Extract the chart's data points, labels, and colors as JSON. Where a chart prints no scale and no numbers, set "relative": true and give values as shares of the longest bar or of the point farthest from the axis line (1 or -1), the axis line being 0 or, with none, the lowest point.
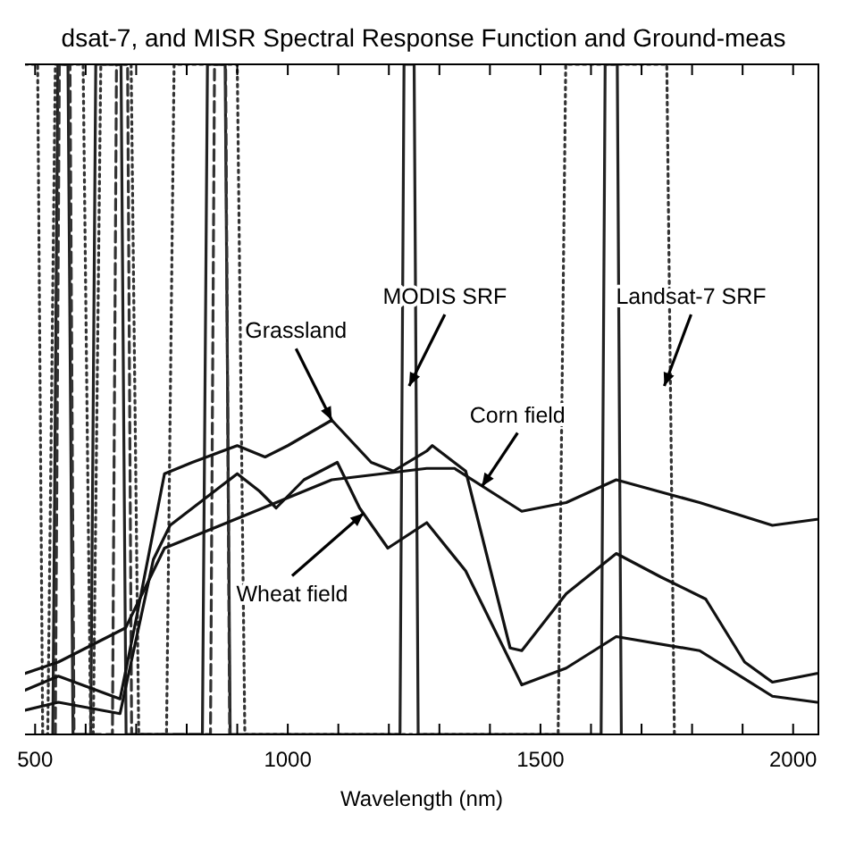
{
  "chart_data": {
    "type": "line",
    "title": "dsat-7, and MISR Spectral Response Function and Ground-meas",
    "xlabel": "Wavelength (nm)",
    "relative": true,
    "xlim": [
      480,
      2050
    ],
    "xticks": [
      {
        "value": 500,
        "label": "500"
      },
      {
        "value": 600,
        "label": null
      },
      {
        "value": 700,
        "label": null
      },
      {
        "value": 800,
        "label": null
      },
      {
        "value": 900,
        "label": null
      },
      1000,
      {
        "value": 1100,
        "label": null
      },
      {
        "value": 1200,
        "label": null
      },
      {
        "value": 1300,
        "label": null
      },
      {
        "value": 1400,
        "label": null
      },
      1500,
      {
        "value": 1600,
        "label": null
      },
      {
        "value": 1700,
        "label": null
      },
      {
        "value": 1800,
        "label": null
      },
      {
        "value": 1900,
        "label": null
      },
      2000
    ],
    "grid": false,
    "series": [
      {
        "color": "#222222",
        "line_style": "solid",
        "x": [
          535,
          545,
          565,
          575,
          610,
          620,
          670,
          680,
          831,
          841,
          876,
          886,
          1222,
          1230,
          1250,
          1258,
          1620,
          1628,
          1652,
          1660
        ],
        "values": [
          0,
          1,
          1,
          0,
          0,
          1,
          1,
          0,
          0,
          1,
          1,
          0,
          0,
          1,
          1,
          0,
          0,
          1,
          1,
          0
        ]
      },
      {
        "color": "#333333",
        "line_style": "dotted",
        "x": [
          480,
          505,
          515,
          525,
          540,
          595,
          610,
          615,
          630,
          690,
          705,
          760,
          775,
          900,
          915,
          1535,
          1550,
          1750,
          1765
        ],
        "values": [
          1,
          1,
          0,
          0,
          1,
          1,
          0,
          0,
          1,
          1,
          0,
          0,
          1,
          1,
          0,
          0,
          1,
          1,
          0
        ]
      },
      {
        "color": "#333333",
        "line_style": "dashed",
        "x": [
          540,
          548,
          569,
          577,
          653,
          661,
          683,
          691,
          847,
          855,
          877,
          885
        ],
        "values": [
          0,
          1,
          1,
          0,
          0,
          1,
          1,
          0,
          0,
          1,
          1,
          0
        ]
      },
      {
        "color": "#111111",
        "line_style": "solid",
        "x": [
          480,
          546,
          668,
          701,
          756,
          811,
          900,
          955,
          1000,
          1087,
          1165,
          1209,
          1275,
          1286,
          1352,
          1440,
          1463,
          1551,
          1650,
          1738,
          1827,
          1904,
          1959,
          2047
        ],
        "values": [
          0.066,
          0.087,
          0.053,
          0.176,
          0.389,
          0.406,
          0.431,
          0.414,
          0.431,
          0.469,
          0.406,
          0.393,
          0.423,
          0.431,
          0.393,
          0.129,
          0.125,
          0.21,
          0.27,
          0.235,
          0.202,
          0.108,
          0.078,
          0.091
        ]
      },
      {
        "color": "#111111",
        "line_style": "solid",
        "x": [
          480,
          546,
          668,
          734,
          767,
          900,
          944,
          977,
          1032,
          1098,
          1142,
          1198,
          1275,
          1352,
          1463,
          1551,
          1650,
          1815,
          1959,
          2047
        ],
        "values": [
          0.036,
          0.048,
          0.031,
          0.261,
          0.312,
          0.389,
          0.363,
          0.338,
          0.38,
          0.406,
          0.338,
          0.278,
          0.316,
          0.244,
          0.074,
          0.099,
          0.146,
          0.125,
          0.057,
          0.048
        ]
      },
      {
        "color": "#111111",
        "line_style": "solid",
        "x": [
          480,
          546,
          679,
          712,
          756,
          922,
          1087,
          1275,
          1330,
          1463,
          1551,
          1650,
          1815,
          1959,
          2047
        ],
        "values": [
          0.091,
          0.108,
          0.159,
          0.21,
          0.278,
          0.329,
          0.38,
          0.397,
          0.397,
          0.333,
          0.346,
          0.38,
          0.346,
          0.312,
          0.321
        ]
      }
    ],
    "annotations": [
      {
        "text": "MODIS SRF",
        "x": 1240,
        "y": 0.52
      },
      {
        "text": "Landsat-7 SRF",
        "x": 1745,
        "y": 0.52
      },
      {
        "text": "Grassland",
        "x": 1087,
        "y": 0.469
      },
      {
        "text": "Corn field",
        "x": 1384,
        "y": 0.37
      },
      {
        "text": "Wheat field",
        "x": 1150,
        "y": 0.33
      }
    ]
  }
}
